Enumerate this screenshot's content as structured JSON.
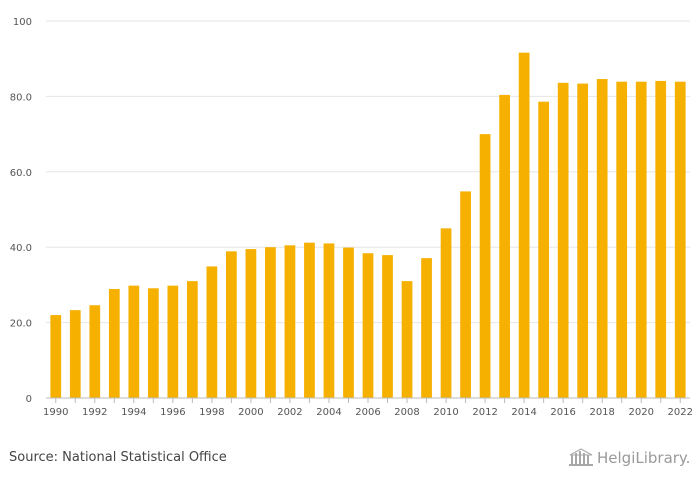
{
  "chart_data": {
    "type": "bar",
    "title": "",
    "xlabel": "",
    "ylabel": "",
    "ylim": [
      0,
      100
    ],
    "yticks": [
      "0",
      "20.0",
      "40.0",
      "60.0",
      "80.0",
      "100"
    ],
    "grid": true,
    "bar_color": "#F5B000",
    "categories": [
      "1990",
      "1991",
      "1992",
      "1993",
      "1994",
      "1995",
      "1996",
      "1997",
      "1998",
      "1999",
      "2000",
      "2001",
      "2002",
      "2003",
      "2004",
      "2005",
      "2006",
      "2007",
      "2008",
      "2009",
      "2010",
      "2011",
      "2012",
      "2013",
      "2014",
      "2015",
      "2016",
      "2017",
      "2018",
      "2019",
      "2020",
      "2021",
      "2022"
    ],
    "xtick_labels": [
      "1990",
      "",
      "1992",
      "",
      "1994",
      "",
      "1996",
      "",
      "1998",
      "",
      "2000",
      "",
      "2002",
      "",
      "2004",
      "",
      "2006",
      "",
      "2008",
      "",
      "2010",
      "",
      "2012",
      "",
      "2014",
      "",
      "2016",
      "",
      "2018",
      "",
      "2020",
      "",
      "2022"
    ],
    "values": [
      22.0,
      23.3,
      24.6,
      28.9,
      29.8,
      29.1,
      29.8,
      31.0,
      34.9,
      38.9,
      39.5,
      40.0,
      40.5,
      41.2,
      41.0,
      39.9,
      38.4,
      37.9,
      31.0,
      37.1,
      45.0,
      54.8,
      70.0,
      80.4,
      91.6,
      78.6,
      83.6,
      83.4,
      84.6,
      83.9,
      83.9,
      84.1,
      83.9
    ]
  },
  "footer": {
    "source": "Source: National Statistical Office",
    "logo_text": "HelgiLibrary."
  }
}
